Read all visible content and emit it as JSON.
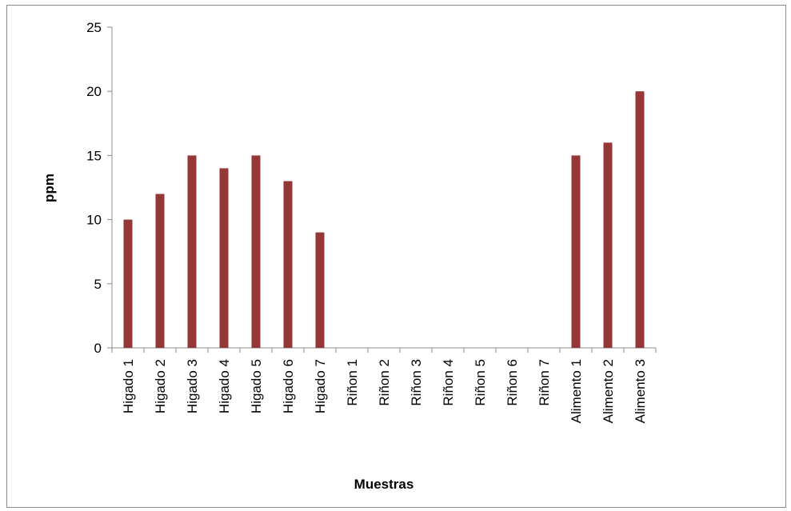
{
  "chart_data": {
    "type": "bar",
    "title": "",
    "xlabel": "Muestras",
    "ylabel": "ppm",
    "categories": [
      "Higado 1",
      "Higado 2",
      "Higado 3",
      "Higado 4",
      "Higado 5",
      "Higado 6",
      "Higado 7",
      "Riñon 1",
      "Riñon 2",
      "Riñon 3",
      "Riñon 4",
      "Riñon 5",
      "Riñon 6",
      "Riñon 7",
      "Alimento 1",
      "Alimento 2",
      "Alimento 3"
    ],
    "values": [
      10,
      12,
      15,
      14,
      15,
      13,
      9,
      0,
      0,
      0,
      0,
      0,
      0,
      0,
      15,
      16,
      20
    ],
    "ylim": [
      0,
      25
    ],
    "yticks": [
      "0",
      "5",
      "10",
      "15",
      "20",
      "25"
    ],
    "bar_color": "#953735",
    "grid": false,
    "legend": "none"
  }
}
